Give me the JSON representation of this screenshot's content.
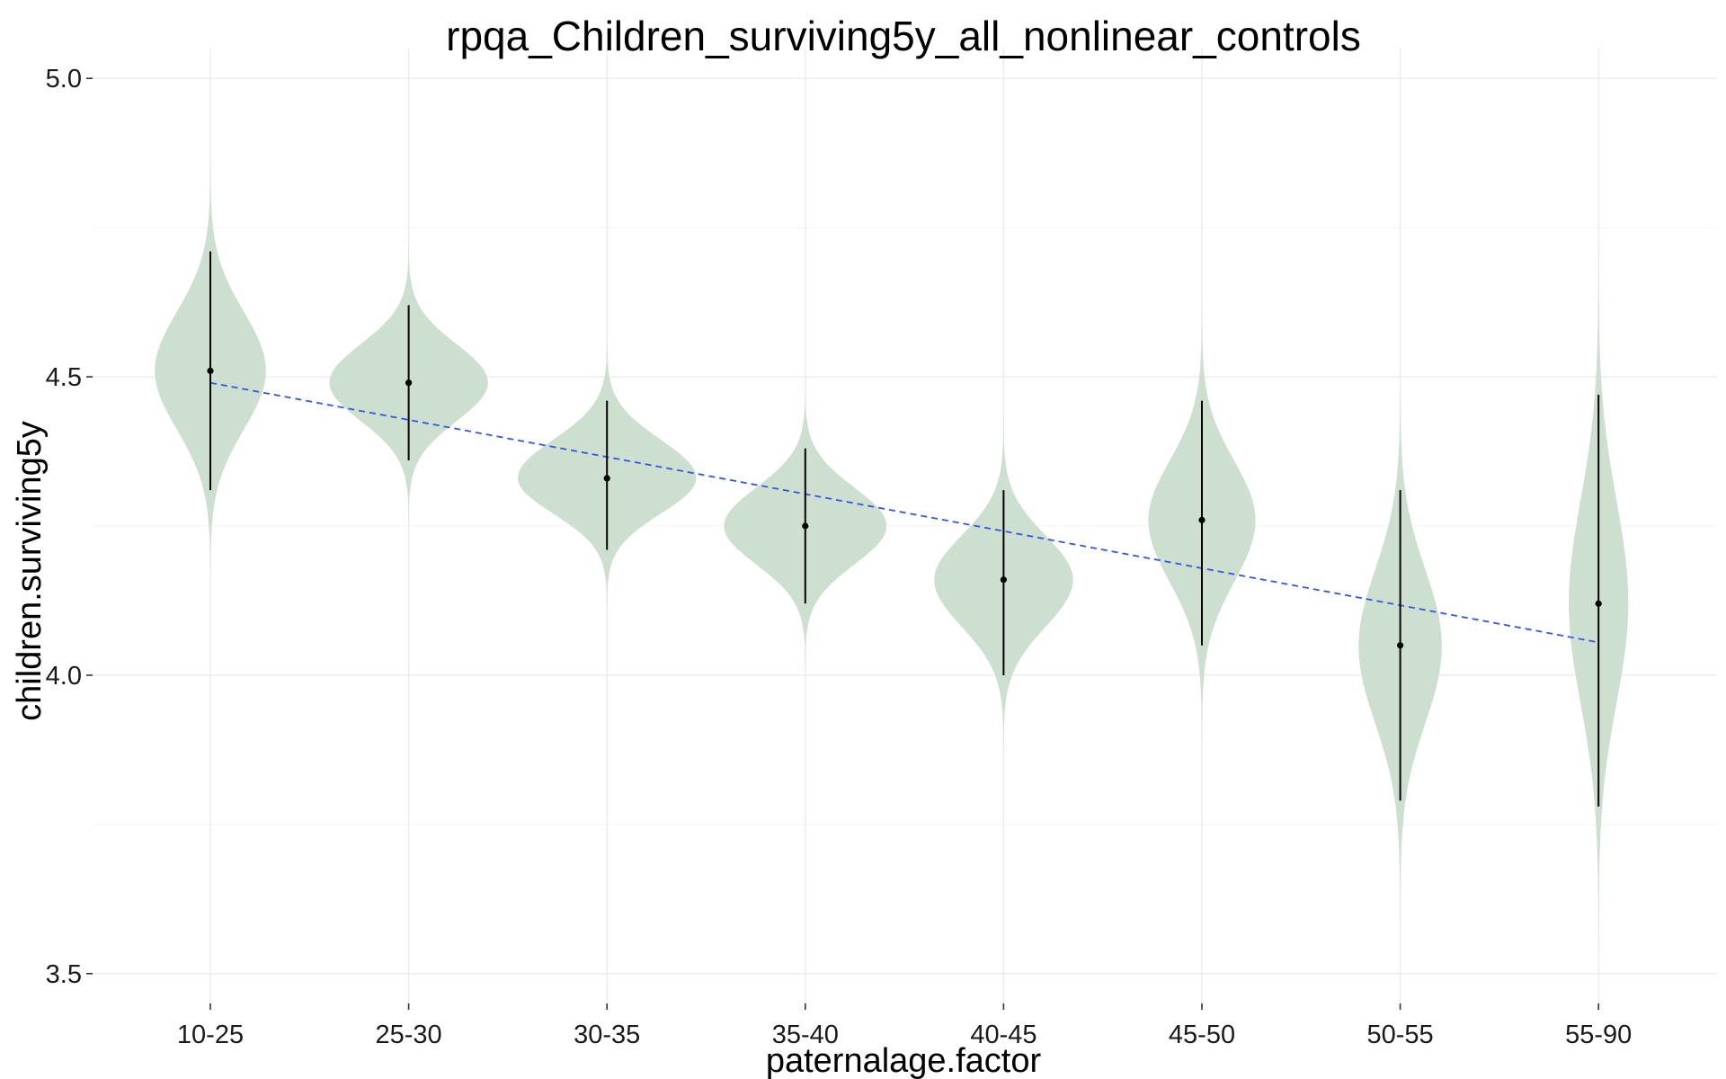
{
  "chart_data": {
    "type": "violin",
    "title": "rpqa_Children_surviving5y_all_nonlinear_controls",
    "xlabel": "paternalage.factor",
    "ylabel": "children.surviving5y",
    "categories": [
      "10-25",
      "25-30",
      "30-35",
      "35-40",
      "40-45",
      "45-50",
      "50-55",
      "55-90"
    ],
    "ylim": [
      3.45,
      5.05
    ],
    "yticks": [
      3.5,
      4.0,
      4.5,
      5.0
    ],
    "ytick_labels": [
      "3.5",
      "4.0",
      "4.5",
      "5.0"
    ],
    "grid": true,
    "colors": {
      "violin": "#cde0d0",
      "trend": "#3355ee",
      "marker": "#000000"
    },
    "violins": [
      {
        "category": "10-25",
        "point": 4.51,
        "lower": 4.31,
        "upper": 4.71,
        "ymin": 4.17,
        "ymax": 4.86,
        "max_halfwidth": 0.28
      },
      {
        "category": "25-30",
        "point": 4.49,
        "lower": 4.36,
        "upper": 4.62,
        "ymin": 4.25,
        "ymax": 4.74,
        "max_halfwidth": 0.4
      },
      {
        "category": "30-35",
        "point": 4.33,
        "lower": 4.21,
        "upper": 4.46,
        "ymin": 4.11,
        "ymax": 4.56,
        "max_halfwidth": 0.45
      },
      {
        "category": "35-40",
        "point": 4.25,
        "lower": 4.12,
        "upper": 4.38,
        "ymin": 4.01,
        "ymax": 4.49,
        "max_halfwidth": 0.41
      },
      {
        "category": "40-45",
        "point": 4.16,
        "lower": 4.0,
        "upper": 4.31,
        "ymin": 3.88,
        "ymax": 4.44,
        "max_halfwidth": 0.35
      },
      {
        "category": "45-50",
        "point": 4.26,
        "lower": 4.05,
        "upper": 4.46,
        "ymin": 3.89,
        "ymax": 4.63,
        "max_halfwidth": 0.27
      },
      {
        "category": "50-55",
        "point": 4.05,
        "lower": 3.79,
        "upper": 4.31,
        "ymin": 3.56,
        "ymax": 4.49,
        "max_halfwidth": 0.21
      },
      {
        "category": "55-90",
        "point": 4.12,
        "lower": 3.78,
        "upper": 4.47,
        "ymin": 3.53,
        "ymax": 4.73,
        "max_halfwidth": 0.15
      }
    ],
    "trend_line": {
      "style": "dashed",
      "from": {
        "x": "10-25",
        "y": 4.49
      },
      "to": {
        "x": "55-90",
        "y": 4.055
      }
    }
  }
}
